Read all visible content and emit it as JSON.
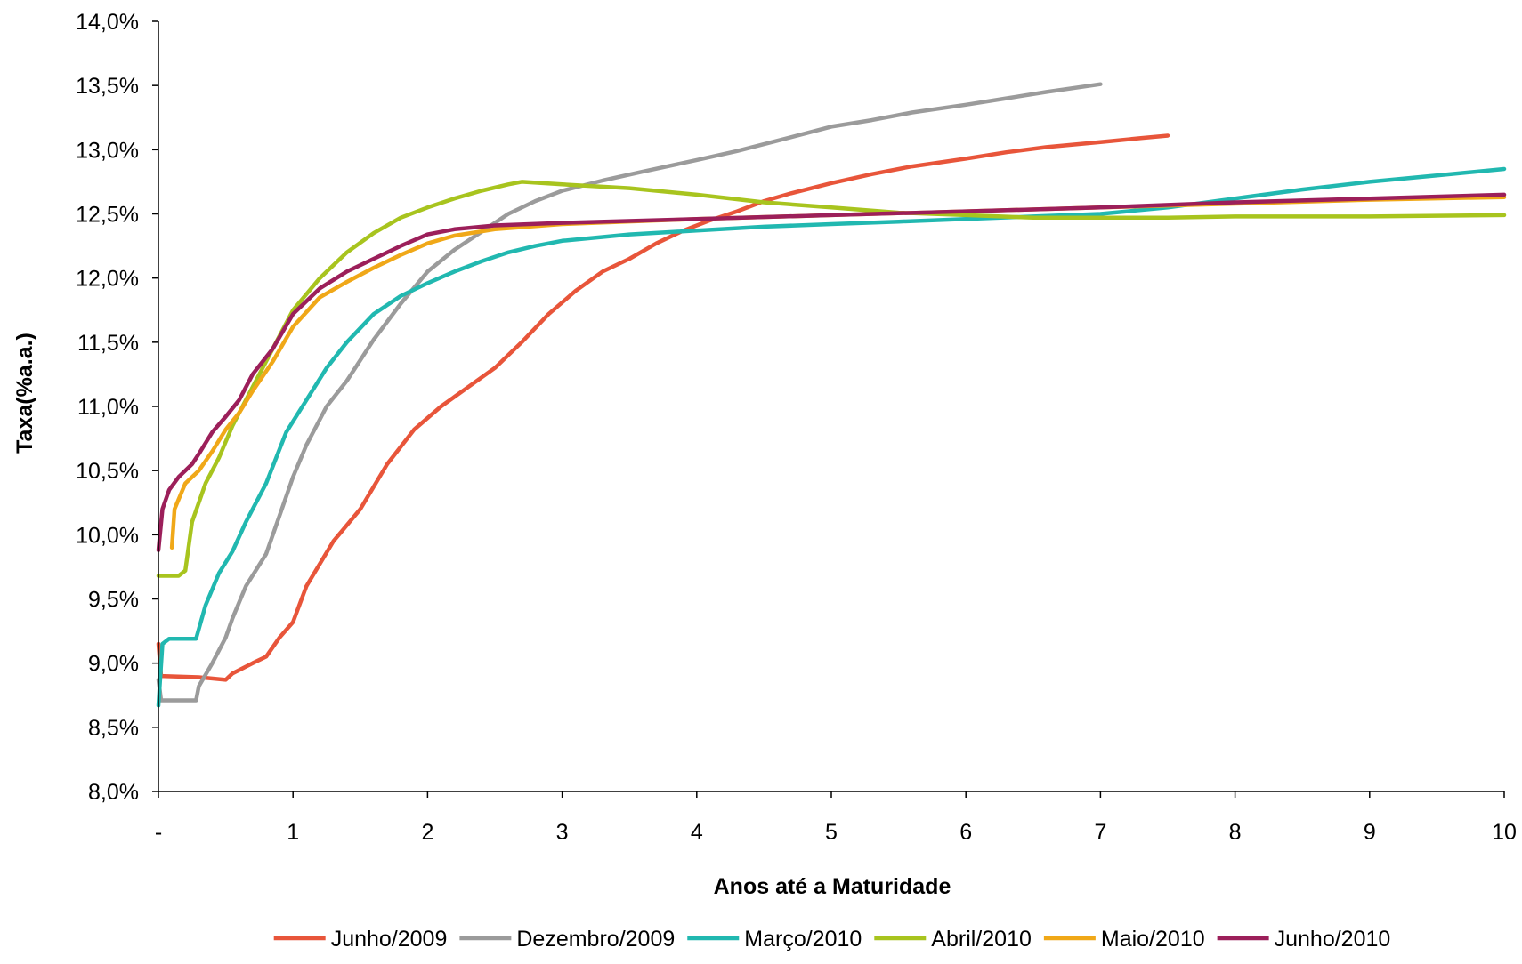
{
  "chart_data": {
    "type": "line",
    "title": "",
    "xlabel": "Anos até a Maturidade",
    "ylabel": "Taxa(%a.a.)",
    "xlim": [
      0,
      10
    ],
    "ylim": [
      8.0,
      14.0
    ],
    "grid": false,
    "legend_position": "bottom",
    "y_ticks": [
      {
        "value": 8.0,
        "label": "8,0%"
      },
      {
        "value": 8.5,
        "label": "8,5%"
      },
      {
        "value": 9.0,
        "label": "9,0%"
      },
      {
        "value": 9.5,
        "label": "9,5%"
      },
      {
        "value": 10.0,
        "label": "10,0%"
      },
      {
        "value": 10.5,
        "label": "10,5%"
      },
      {
        "value": 11.0,
        "label": "11,0%"
      },
      {
        "value": 11.5,
        "label": "11,5%"
      },
      {
        "value": 12.0,
        "label": "12,0%"
      },
      {
        "value": 12.5,
        "label": "12,5%"
      },
      {
        "value": 13.0,
        "label": "13,0%"
      },
      {
        "value": 13.5,
        "label": "13,5%"
      },
      {
        "value": 14.0,
        "label": "14,0%"
      }
    ],
    "x_ticks": [
      {
        "value": 0,
        "label": "-"
      },
      {
        "value": 1,
        "label": "1"
      },
      {
        "value": 2,
        "label": "2"
      },
      {
        "value": 3,
        "label": "3"
      },
      {
        "value": 4,
        "label": "4"
      },
      {
        "value": 5,
        "label": "5"
      },
      {
        "value": 6,
        "label": "6"
      },
      {
        "value": 7,
        "label": "7"
      },
      {
        "value": 8,
        "label": "8"
      },
      {
        "value": 9,
        "label": "9"
      },
      {
        "value": 10,
        "label": "10"
      }
    ],
    "series": [
      {
        "name": "Junho/2009",
        "color": "#E8553A",
        "points": [
          [
            0,
            9.15
          ],
          [
            0.02,
            8.9
          ],
          [
            0.3,
            8.89
          ],
          [
            0.5,
            8.87
          ],
          [
            0.55,
            8.92
          ],
          [
            0.7,
            9.0
          ],
          [
            0.8,
            9.05
          ],
          [
            0.9,
            9.2
          ],
          [
            1.0,
            9.32
          ],
          [
            1.1,
            9.6
          ],
          [
            1.3,
            9.95
          ],
          [
            1.5,
            10.2
          ],
          [
            1.7,
            10.55
          ],
          [
            1.9,
            10.82
          ],
          [
            2.1,
            11.0
          ],
          [
            2.3,
            11.15
          ],
          [
            2.5,
            11.3
          ],
          [
            2.7,
            11.5
          ],
          [
            2.9,
            11.72
          ],
          [
            3.1,
            11.9
          ],
          [
            3.3,
            12.05
          ],
          [
            3.5,
            12.15
          ],
          [
            3.7,
            12.27
          ],
          [
            3.9,
            12.37
          ],
          [
            4.1,
            12.45
          ],
          [
            4.3,
            12.52
          ],
          [
            4.5,
            12.6
          ],
          [
            4.7,
            12.66
          ],
          [
            5.0,
            12.74
          ],
          [
            5.3,
            12.81
          ],
          [
            5.6,
            12.87
          ],
          [
            6.0,
            12.93
          ],
          [
            6.3,
            12.98
          ],
          [
            6.6,
            13.02
          ],
          [
            7.0,
            13.06
          ],
          [
            7.3,
            13.09
          ],
          [
            7.5,
            13.11
          ]
        ]
      },
      {
        "name": "Dezembro/2009",
        "color": "#9B9B9B",
        "points": [
          [
            0,
            8.87
          ],
          [
            0.02,
            8.71
          ],
          [
            0.28,
            8.71
          ],
          [
            0.3,
            8.82
          ],
          [
            0.4,
            9.0
          ],
          [
            0.5,
            9.2
          ],
          [
            0.55,
            9.35
          ],
          [
            0.65,
            9.6
          ],
          [
            0.8,
            9.85
          ],
          [
            0.9,
            10.15
          ],
          [
            1.0,
            10.45
          ],
          [
            1.1,
            10.7
          ],
          [
            1.25,
            11.0
          ],
          [
            1.4,
            11.2
          ],
          [
            1.6,
            11.52
          ],
          [
            1.8,
            11.8
          ],
          [
            2.0,
            12.05
          ],
          [
            2.2,
            12.22
          ],
          [
            2.4,
            12.36
          ],
          [
            2.6,
            12.5
          ],
          [
            2.8,
            12.6
          ],
          [
            3.0,
            12.68
          ],
          [
            3.3,
            12.76
          ],
          [
            3.6,
            12.83
          ],
          [
            4.0,
            12.92
          ],
          [
            4.3,
            12.99
          ],
          [
            4.6,
            13.07
          ],
          [
            5.0,
            13.18
          ],
          [
            5.3,
            13.23
          ],
          [
            5.6,
            13.29
          ],
          [
            6.0,
            13.35
          ],
          [
            6.3,
            13.4
          ],
          [
            6.6,
            13.45
          ],
          [
            7.0,
            13.51
          ]
        ]
      },
      {
        "name": "Março/2010",
        "color": "#21B8B0",
        "points": [
          [
            0,
            8.67
          ],
          [
            0.03,
            9.15
          ],
          [
            0.08,
            9.19
          ],
          [
            0.28,
            9.19
          ],
          [
            0.35,
            9.45
          ],
          [
            0.45,
            9.7
          ],
          [
            0.55,
            9.87
          ],
          [
            0.65,
            10.1
          ],
          [
            0.8,
            10.4
          ],
          [
            0.95,
            10.8
          ],
          [
            1.1,
            11.05
          ],
          [
            1.25,
            11.3
          ],
          [
            1.4,
            11.5
          ],
          [
            1.6,
            11.72
          ],
          [
            1.8,
            11.86
          ],
          [
            2.0,
            11.96
          ],
          [
            2.2,
            12.05
          ],
          [
            2.4,
            12.13
          ],
          [
            2.6,
            12.2
          ],
          [
            2.8,
            12.25
          ],
          [
            3.0,
            12.29
          ],
          [
            3.5,
            12.34
          ],
          [
            4.0,
            12.37
          ],
          [
            4.5,
            12.4
          ],
          [
            5.0,
            12.42
          ],
          [
            5.5,
            12.44
          ],
          [
            6.0,
            12.46
          ],
          [
            6.5,
            12.48
          ],
          [
            7.0,
            12.5
          ],
          [
            7.5,
            12.55
          ],
          [
            8.0,
            12.62
          ],
          [
            8.5,
            12.69
          ],
          [
            9.0,
            12.75
          ],
          [
            9.5,
            12.8
          ],
          [
            10.0,
            12.85
          ]
        ]
      },
      {
        "name": "Abril/2010",
        "color": "#A8C41E",
        "points": [
          [
            0,
            9.68
          ],
          [
            0.15,
            9.68
          ],
          [
            0.2,
            9.72
          ],
          [
            0.25,
            10.1
          ],
          [
            0.35,
            10.4
          ],
          [
            0.45,
            10.6
          ],
          [
            0.55,
            10.85
          ],
          [
            0.7,
            11.15
          ],
          [
            0.85,
            11.45
          ],
          [
            1.0,
            11.75
          ],
          [
            1.2,
            12.0
          ],
          [
            1.4,
            12.2
          ],
          [
            1.6,
            12.35
          ],
          [
            1.8,
            12.47
          ],
          [
            2.0,
            12.55
          ],
          [
            2.2,
            12.62
          ],
          [
            2.4,
            12.68
          ],
          [
            2.6,
            12.73
          ],
          [
            2.7,
            12.75
          ],
          [
            3.0,
            12.73
          ],
          [
            3.5,
            12.7
          ],
          [
            4.0,
            12.65
          ],
          [
            4.5,
            12.59
          ],
          [
            5.0,
            12.55
          ],
          [
            5.5,
            12.51
          ],
          [
            6.0,
            12.49
          ],
          [
            6.5,
            12.47
          ],
          [
            7.0,
            12.47
          ],
          [
            7.5,
            12.47
          ],
          [
            8.0,
            12.48
          ],
          [
            9.0,
            12.48
          ],
          [
            10.0,
            12.49
          ]
        ]
      },
      {
        "name": "Maio/2010",
        "color": "#F0A818",
        "points": [
          [
            0.1,
            9.9
          ],
          [
            0.12,
            10.2
          ],
          [
            0.2,
            10.4
          ],
          [
            0.3,
            10.5
          ],
          [
            0.4,
            10.65
          ],
          [
            0.5,
            10.82
          ],
          [
            0.6,
            10.95
          ],
          [
            0.7,
            11.12
          ],
          [
            0.85,
            11.35
          ],
          [
            1.0,
            11.62
          ],
          [
            1.2,
            11.85
          ],
          [
            1.4,
            11.97
          ],
          [
            1.6,
            12.08
          ],
          [
            1.8,
            12.18
          ],
          [
            2.0,
            12.27
          ],
          [
            2.2,
            12.33
          ],
          [
            2.5,
            12.38
          ],
          [
            3.0,
            12.42
          ],
          [
            4.0,
            12.46
          ],
          [
            5.0,
            12.49
          ],
          [
            6.0,
            12.52
          ],
          [
            7.0,
            12.55
          ],
          [
            8.0,
            12.58
          ],
          [
            9.0,
            12.61
          ],
          [
            10.0,
            12.63
          ]
        ]
      },
      {
        "name": "Junho/2010",
        "color": "#9C1F5A",
        "points": [
          [
            0,
            9.88
          ],
          [
            0.03,
            10.2
          ],
          [
            0.08,
            10.35
          ],
          [
            0.15,
            10.45
          ],
          [
            0.25,
            10.55
          ],
          [
            0.3,
            10.63
          ],
          [
            0.4,
            10.8
          ],
          [
            0.5,
            10.92
          ],
          [
            0.6,
            11.05
          ],
          [
            0.7,
            11.25
          ],
          [
            0.85,
            11.45
          ],
          [
            1.0,
            11.72
          ],
          [
            1.2,
            11.92
          ],
          [
            1.4,
            12.05
          ],
          [
            1.6,
            12.15
          ],
          [
            1.8,
            12.25
          ],
          [
            2.0,
            12.34
          ],
          [
            2.2,
            12.38
          ],
          [
            2.5,
            12.41
          ],
          [
            3.0,
            12.43
          ],
          [
            4.0,
            12.46
          ],
          [
            5.0,
            12.49
          ],
          [
            6.0,
            12.52
          ],
          [
            7.0,
            12.55
          ],
          [
            8.0,
            12.59
          ],
          [
            9.0,
            12.62
          ],
          [
            10.0,
            12.65
          ]
        ]
      }
    ]
  }
}
